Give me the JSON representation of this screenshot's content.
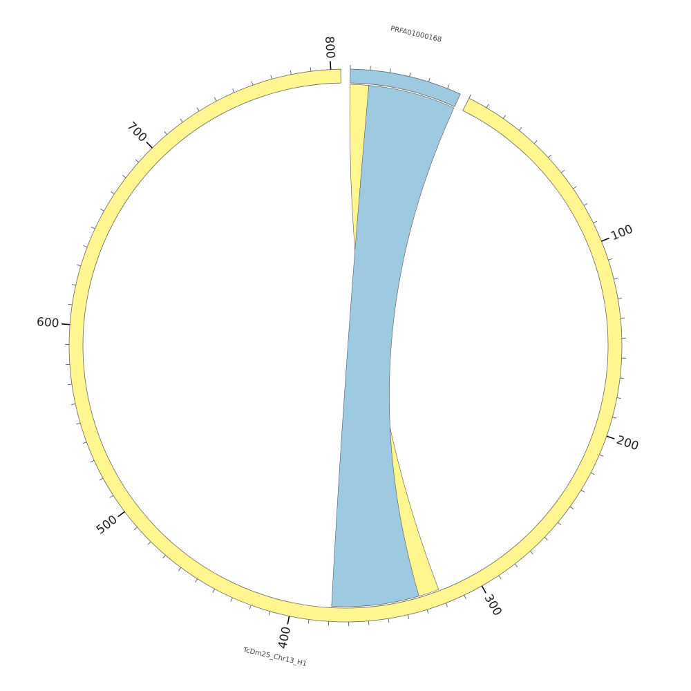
{
  "chart_data": {
    "type": "chord",
    "segments": [
      {
        "name": "PRFA01000168",
        "color": "#9ecae1",
        "length": 57,
        "ticks": []
      },
      {
        "name": "TcDm25_Chr13_H1",
        "color": "#fff68f",
        "length": 805,
        "ticks": [
          100,
          200,
          300,
          400,
          500,
          600,
          700,
          800
        ]
      }
    ],
    "minor_tick_interval": 10,
    "links": [
      {
        "source": 0,
        "source_range": [
          0,
          10
        ],
        "target": 1,
        "target_range": [
          321,
          333
        ],
        "color": "#fff68f"
      },
      {
        "source": 0,
        "source_range": [
          10,
          57
        ],
        "target": 1,
        "target_range": [
          332,
          379
        ],
        "color": "#9ecae1"
      }
    ]
  }
}
